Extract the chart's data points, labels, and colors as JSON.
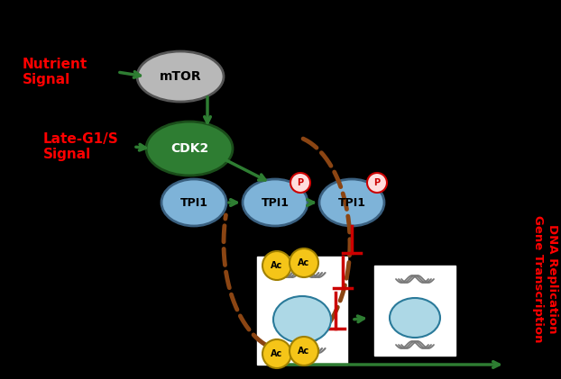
{
  "bg_color": "#000000",
  "mtor_color": "#b8b8b8",
  "mtor_label": "mTOR",
  "cdk2_color": "#2e7d32",
  "cdk2_label": "CDK2",
  "tpi1_color": "#7eb3d8",
  "tpi1_label": "TPI1",
  "p_color": "#ff3333",
  "p_label": "P",
  "nutrient_text": "Nutrient\nSignal",
  "lateG1S_text": "Late-G1/S\nSignal",
  "dna_text": "DNA Replication\nGene Transcription",
  "arrow_green": "#2e7d32",
  "arrow_red": "#cc0000",
  "dashed_brown": "#8b4513",
  "ac_color": "#f5c518",
  "ac_label": "Ac",
  "red_text_color": "#ff0000"
}
